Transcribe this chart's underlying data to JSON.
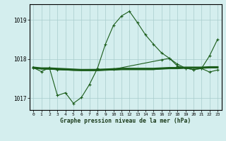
{
  "title": "Graphe pression niveau de la mer (hPa)",
  "bg_color": "#d4eeee",
  "grid_color": "#a8cccc",
  "line_color": "#1a5c1a",
  "x_min": -0.5,
  "x_max": 23.5,
  "y_min": 1016.7,
  "y_max": 1019.4,
  "yticks": [
    1017,
    1018,
    1019
  ],
  "xticks": [
    0,
    1,
    2,
    3,
    4,
    5,
    6,
    7,
    8,
    9,
    10,
    11,
    12,
    13,
    14,
    15,
    16,
    17,
    18,
    19,
    20,
    21,
    22,
    23
  ],
  "s1_x": [
    0,
    1,
    2,
    3,
    4,
    5,
    6,
    7,
    8,
    9,
    10,
    11,
    12,
    13,
    14,
    15,
    16,
    17,
    18,
    19,
    20,
    21,
    22,
    23
  ],
  "s1_y": [
    1017.78,
    1017.68,
    1017.78,
    1017.07,
    1017.14,
    1016.87,
    1017.02,
    1017.35,
    1017.76,
    1018.38,
    1018.86,
    1019.1,
    1019.22,
    1018.93,
    1018.62,
    1018.38,
    1018.16,
    1018.02,
    1017.87,
    1017.77,
    1017.73,
    1017.76,
    1017.67,
    1017.72
  ],
  "s2_x": [
    0,
    1,
    2,
    3,
    4,
    5,
    6,
    7,
    8,
    9,
    10,
    11,
    12,
    13,
    14,
    15,
    16,
    17,
    18,
    19,
    20,
    21,
    22,
    23
  ],
  "s2_y": [
    1017.78,
    1017.76,
    1017.76,
    1017.75,
    1017.74,
    1017.73,
    1017.72,
    1017.72,
    1017.72,
    1017.73,
    1017.74,
    1017.75,
    1017.75,
    1017.75,
    1017.75,
    1017.75,
    1017.76,
    1017.77,
    1017.77,
    1017.78,
    1017.78,
    1017.78,
    1017.79,
    1017.79
  ],
  "s3_x": [
    0,
    1,
    2,
    3,
    4,
    5,
    6,
    7,
    8,
    9,
    10,
    11,
    12,
    13,
    14,
    15,
    16,
    17,
    18,
    19,
    20,
    21,
    22,
    23
  ],
  "s3_y": [
    1017.78,
    1017.75,
    1017.74,
    1017.73,
    1017.72,
    1017.71,
    1017.71,
    1017.71,
    1017.71,
    1017.72,
    1017.72,
    1017.73,
    1017.73,
    1017.73,
    1017.73,
    1017.73,
    1017.75,
    1017.76,
    1017.77,
    1017.78,
    1017.78,
    1017.78,
    1017.79,
    1017.8
  ],
  "s4_x": [
    0,
    3,
    10,
    16,
    17,
    18,
    19,
    20,
    21,
    22,
    23
  ],
  "s4_y": [
    1017.78,
    1017.73,
    1017.74,
    1017.98,
    1018.02,
    1017.82,
    1017.77,
    1017.73,
    1017.76,
    1018.08,
    1018.5
  ]
}
